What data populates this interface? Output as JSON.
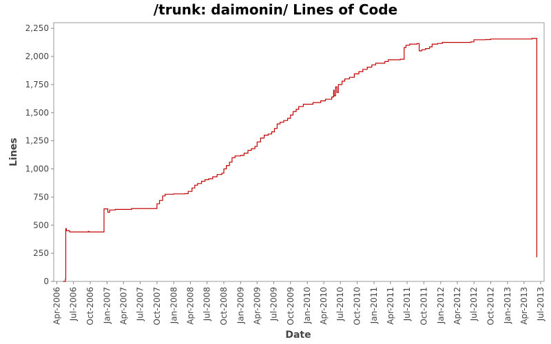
{
  "chart_data": {
    "type": "line",
    "title": "/trunk: daimonin/ Lines of Code",
    "xlabel": "Date",
    "ylabel": "Lines",
    "ylim": [
      0,
      2300
    ],
    "xlim": [
      "2006-03-15",
      "2013-07-20"
    ],
    "grid": false,
    "line_color": "#c00000",
    "y_ticks": [
      0,
      250,
      500,
      750,
      1000,
      1250,
      1500,
      1750,
      2000,
      2250
    ],
    "y_tick_labels": [
      "0",
      "250",
      "500",
      "750",
      "1,000",
      "1,250",
      "1,500",
      "1,750",
      "2,000",
      "2,250"
    ],
    "x_ticks": [
      "2006-04-01",
      "2006-07-01",
      "2006-10-01",
      "2007-01-01",
      "2007-04-01",
      "2007-07-01",
      "2007-10-01",
      "2008-01-01",
      "2008-04-01",
      "2008-07-01",
      "2008-10-01",
      "2009-01-01",
      "2009-04-01",
      "2009-07-01",
      "2009-10-01",
      "2010-01-01",
      "2010-04-01",
      "2010-07-01",
      "2010-10-01",
      "2011-01-01",
      "2011-04-01",
      "2011-07-01",
      "2011-10-01",
      "2012-01-01",
      "2012-04-01",
      "2012-07-01",
      "2012-10-01",
      "2013-01-01",
      "2013-04-01",
      "2013-07-01"
    ],
    "x_tick_labels": [
      "Apr-2006",
      "Jul-2006",
      "Oct-2006",
      "Jan-2007",
      "Apr-2007",
      "Jul-2007",
      "Oct-2007",
      "Jan-2008",
      "Apr-2008",
      "Jul-2008",
      "Oct-2008",
      "Jan-2009",
      "Apr-2009",
      "Jul-2009",
      "Oct-2009",
      "Jan-2010",
      "Apr-2010",
      "Jul-2010",
      "Oct-2010",
      "Jan-2011",
      "Apr-2011",
      "Jul-2011",
      "Oct-2011",
      "Jan-2012",
      "Apr-2012",
      "Jul-2012",
      "Oct-2012",
      "Jan-2013",
      "Apr-2013",
      "Jul-2013"
    ],
    "series": [
      {
        "step": true,
        "points": [
          [
            "2006-05-05",
            0
          ],
          [
            "2006-05-18",
            20
          ],
          [
            "2006-05-20",
            470
          ],
          [
            "2006-05-23",
            450
          ],
          [
            "2006-06-10",
            440
          ],
          [
            "2006-09-20",
            445
          ],
          [
            "2006-09-25",
            440
          ],
          [
            "2006-12-15",
            645
          ],
          [
            "2007-01-05",
            615
          ],
          [
            "2007-01-15",
            635
          ],
          [
            "2007-02-15",
            640
          ],
          [
            "2007-05-15",
            648
          ],
          [
            "2007-09-25",
            648
          ],
          [
            "2007-10-01",
            690
          ],
          [
            "2007-10-15",
            720
          ],
          [
            "2007-11-01",
            760
          ],
          [
            "2007-11-15",
            775
          ],
          [
            "2008-01-01",
            778
          ],
          [
            "2008-03-01",
            780
          ],
          [
            "2008-03-20",
            800
          ],
          [
            "2008-04-10",
            830
          ],
          [
            "2008-04-25",
            855
          ],
          [
            "2008-05-10",
            870
          ],
          [
            "2008-06-01",
            890
          ],
          [
            "2008-06-20",
            905
          ],
          [
            "2008-07-10",
            912
          ],
          [
            "2008-08-01",
            930
          ],
          [
            "2008-08-25",
            950
          ],
          [
            "2008-09-20",
            962
          ],
          [
            "2008-10-01",
            1000
          ],
          [
            "2008-10-15",
            1030
          ],
          [
            "2008-11-01",
            1060
          ],
          [
            "2008-11-15",
            1100
          ],
          [
            "2008-12-01",
            1115
          ],
          [
            "2009-01-01",
            1120
          ],
          [
            "2009-01-20",
            1140
          ],
          [
            "2009-02-10",
            1165
          ],
          [
            "2009-03-01",
            1180
          ],
          [
            "2009-03-20",
            1200
          ],
          [
            "2009-04-01",
            1240
          ],
          [
            "2009-04-20",
            1275
          ],
          [
            "2009-05-10",
            1300
          ],
          [
            "2009-06-01",
            1310
          ],
          [
            "2009-06-20",
            1330
          ],
          [
            "2009-07-05",
            1360
          ],
          [
            "2009-07-20",
            1400
          ],
          [
            "2009-08-05",
            1415
          ],
          [
            "2009-08-25",
            1430
          ],
          [
            "2009-09-15",
            1450
          ],
          [
            "2009-10-01",
            1480
          ],
          [
            "2009-10-15",
            1510
          ],
          [
            "2009-11-01",
            1530
          ],
          [
            "2009-11-15",
            1555
          ],
          [
            "2009-12-10",
            1575
          ],
          [
            "2010-02-01",
            1590
          ],
          [
            "2010-03-15",
            1605
          ],
          [
            "2010-04-10",
            1620
          ],
          [
            "2010-05-15",
            1640
          ],
          [
            "2010-05-25",
            1700
          ],
          [
            "2010-05-28",
            1650
          ],
          [
            "2010-06-05",
            1730
          ],
          [
            "2010-06-12",
            1680
          ],
          [
            "2010-06-20",
            1750
          ],
          [
            "2010-07-10",
            1780
          ],
          [
            "2010-07-25",
            1800
          ],
          [
            "2010-08-20",
            1815
          ],
          [
            "2010-09-15",
            1845
          ],
          [
            "2010-10-10",
            1865
          ],
          [
            "2010-11-01",
            1885
          ],
          [
            "2010-11-25",
            1905
          ],
          [
            "2010-12-20",
            1925
          ],
          [
            "2011-01-10",
            1940
          ],
          [
            "2011-03-01",
            1955
          ],
          [
            "2011-03-20",
            1970
          ],
          [
            "2011-05-25",
            1975
          ],
          [
            "2011-06-15",
            2080
          ],
          [
            "2011-06-25",
            2100
          ],
          [
            "2011-07-15",
            2110
          ],
          [
            "2011-08-25",
            2115
          ],
          [
            "2011-09-05",
            2050
          ],
          [
            "2011-09-20",
            2060
          ],
          [
            "2011-10-10",
            2070
          ],
          [
            "2011-11-01",
            2085
          ],
          [
            "2011-11-15",
            2110
          ],
          [
            "2011-12-15",
            2115
          ],
          [
            "2012-01-10",
            2125
          ],
          [
            "2012-06-15",
            2130
          ],
          [
            "2012-07-01",
            2148
          ],
          [
            "2012-09-01",
            2150
          ],
          [
            "2012-10-01",
            2155
          ],
          [
            "2013-05-15",
            2160
          ],
          [
            "2013-06-05",
            2160
          ],
          [
            "2013-06-10",
            215
          ]
        ]
      }
    ]
  }
}
